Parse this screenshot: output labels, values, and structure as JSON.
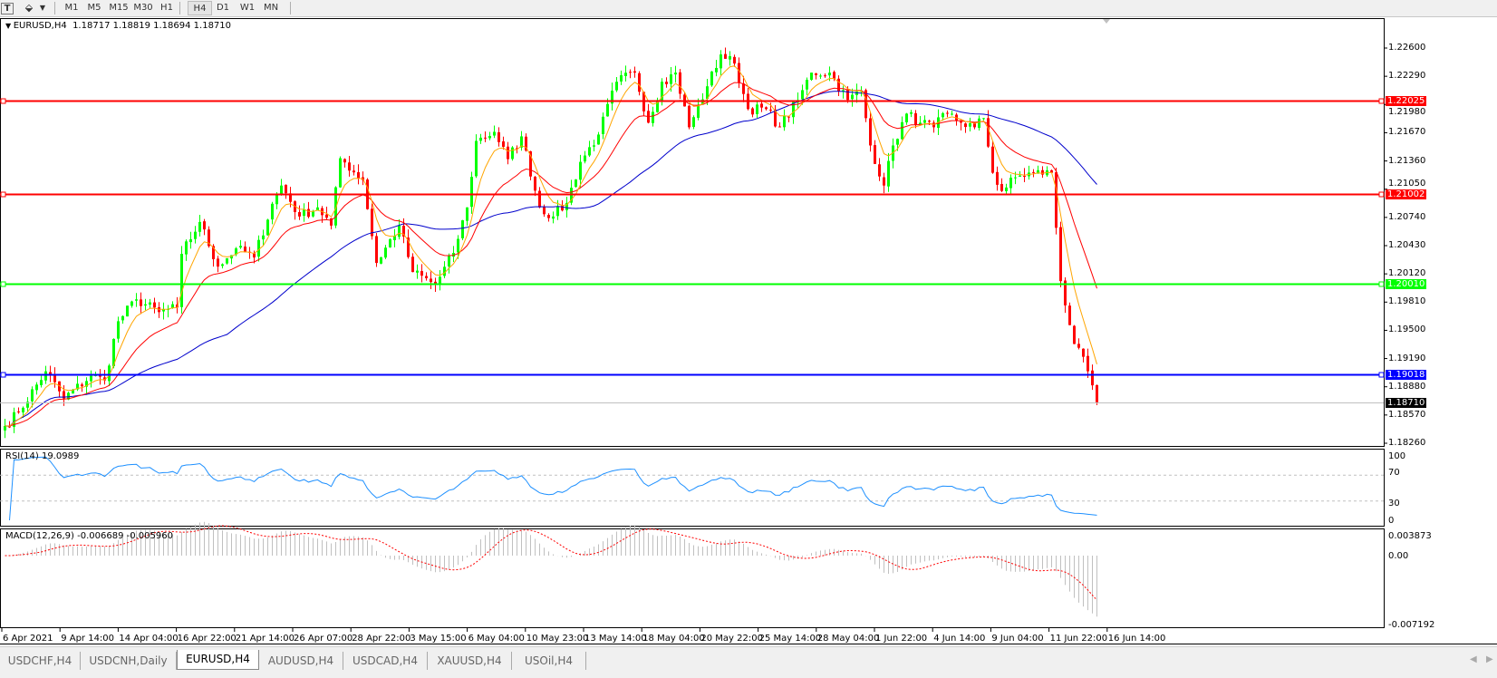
{
  "toolbar": {
    "icons": [
      "text-tool-icon",
      "shapes-tool-icon",
      "dropdown-icon"
    ],
    "timeframes": [
      "M1",
      "M5",
      "M15",
      "M30",
      "H1",
      "H4",
      "D1",
      "W1",
      "MN"
    ],
    "active_timeframe": "H4"
  },
  "chart": {
    "title": "EURUSD,H4  1.18717 1.18819 1.18694 1.18710",
    "colors": {
      "bull": "#00ff00",
      "bear": "#ff0000",
      "ma_fast": "#ffa500",
      "ma_mid": "#ff0000",
      "ma_slow": "#0000cc",
      "rsi": "#1e90ff",
      "macd_hist": "#c0c0c0",
      "macd_signal": "#ff0000"
    },
    "price_axis": [
      "1.22600",
      "1.22290",
      "1.21980",
      "1.21670",
      "1.21360",
      "1.21050",
      "1.20740",
      "1.20430",
      "1.20120",
      "1.19810",
      "1.19500",
      "1.19190",
      "1.18880",
      "1.18570",
      "1.18260"
    ],
    "horizontal_lines": [
      {
        "price": "1.22025",
        "color": "#ff0000"
      },
      {
        "price": "1.21002",
        "color": "#ff0000"
      },
      {
        "price": "1.20010",
        "color": "#00ff00"
      },
      {
        "price": "1.19018",
        "color": "#0000ff"
      }
    ],
    "current_price": "1.18710",
    "time_axis": [
      "6 Apr 2021",
      "9 Apr 14:00",
      "14 Apr 04:00",
      "16 Apr 22:00",
      "21 Apr 14:00",
      "26 Apr 07:00",
      "28 Apr 22:00",
      "3 May 15:00",
      "6 May 04:00",
      "10 May 23:00",
      "13 May 14:00",
      "18 May 04:00",
      "20 May 22:00",
      "25 May 14:00",
      "28 May 04:00",
      "1 Jun 22:00",
      "4 Jun 14:00",
      "9 Jun 04:00",
      "11 Jun 22:00",
      "16 Jun 14:00"
    ]
  },
  "rsi": {
    "label": "RSI(14) 19.0989",
    "levels": [
      "100",
      "70",
      "30",
      "0"
    ]
  },
  "macd": {
    "label": "MACD(12,26,9) -0.006689 -0.005960",
    "levels": [
      "0.003873",
      "0.00",
      "-0.007192"
    ]
  },
  "chart_data": {
    "type": "candlestick",
    "symbol": "EURUSD",
    "timeframe": "H4",
    "ylim": [
      1.1826,
      1.226
    ],
    "close_path": [
      [
        0,
        1.1845
      ],
      [
        3,
        1.186
      ],
      [
        9,
        1.1905
      ],
      [
        13,
        1.1875
      ],
      [
        19,
        1.19
      ],
      [
        22,
        1.1895
      ],
      [
        25,
        1.196
      ],
      [
        29,
        1.1984
      ],
      [
        34,
        1.197
      ],
      [
        38,
        1.1975
      ],
      [
        39,
        1.2034
      ],
      [
        43,
        1.2069
      ],
      [
        47,
        1.202
      ],
      [
        51,
        1.204
      ],
      [
        55,
        1.203
      ],
      [
        59,
        1.2089
      ],
      [
        61,
        1.2109
      ],
      [
        65,
        1.2075
      ],
      [
        69,
        1.2085
      ],
      [
        72,
        1.2065
      ],
      [
        74,
        1.2139
      ],
      [
        79,
        1.2115
      ],
      [
        82,
        1.2024
      ],
      [
        87,
        1.2065
      ],
      [
        90,
        1.2014
      ],
      [
        95,
        1.2
      ],
      [
        99,
        1.2035
      ],
      [
        102,
        1.2085
      ],
      [
        104,
        1.2158
      ],
      [
        108,
        1.2168
      ],
      [
        111,
        1.2138
      ],
      [
        114,
        1.2163
      ],
      [
        118,
        1.2085
      ],
      [
        121,
        1.2075
      ],
      [
        124,
        1.209
      ],
      [
        127,
        1.2135
      ],
      [
        131,
        1.2165
      ],
      [
        135,
        1.2223
      ],
      [
        139,
        1.2233
      ],
      [
        142,
        1.2178
      ],
      [
        145,
        1.2223
      ],
      [
        148,
        1.2233
      ],
      [
        151,
        1.2173
      ],
      [
        155,
        1.2218
      ],
      [
        158,
        1.2253
      ],
      [
        161,
        1.2243
      ],
      [
        164,
        1.2193
      ],
      [
        168,
        1.2193
      ],
      [
        171,
        1.2173
      ],
      [
        175,
        1.2203
      ],
      [
        178,
        1.2233
      ],
      [
        182,
        1.2233
      ],
      [
        186,
        1.2203
      ],
      [
        189,
        1.2213
      ],
      [
        191,
        1.2153
      ],
      [
        194,
        1.2109
      ],
      [
        196,
        1.2153
      ],
      [
        199,
        1.2188
      ],
      [
        202,
        1.2178
      ],
      [
        205,
        1.2173
      ],
      [
        208,
        1.2188
      ],
      [
        211,
        1.2178
      ],
      [
        214,
        1.2173
      ],
      [
        216,
        1.2183
      ],
      [
        218,
        1.2123
      ],
      [
        220,
        1.2103
      ],
      [
        223,
        1.2118
      ],
      [
        227,
        1.2123
      ],
      [
        231,
        1.2123
      ],
      [
        233,
        1.2004
      ],
      [
        236,
        1.1935
      ],
      [
        239,
        1.1905
      ],
      [
        241,
        1.1871
      ]
    ]
  },
  "tabs": [
    "USDCHF,H4",
    "USDCNH,Daily",
    "EURUSD,H4",
    "AUDUSD,H4",
    "USDCAD,H4",
    "XAUUSD,H4",
    "USOil,H4"
  ],
  "active_tab": "EURUSD,H4"
}
